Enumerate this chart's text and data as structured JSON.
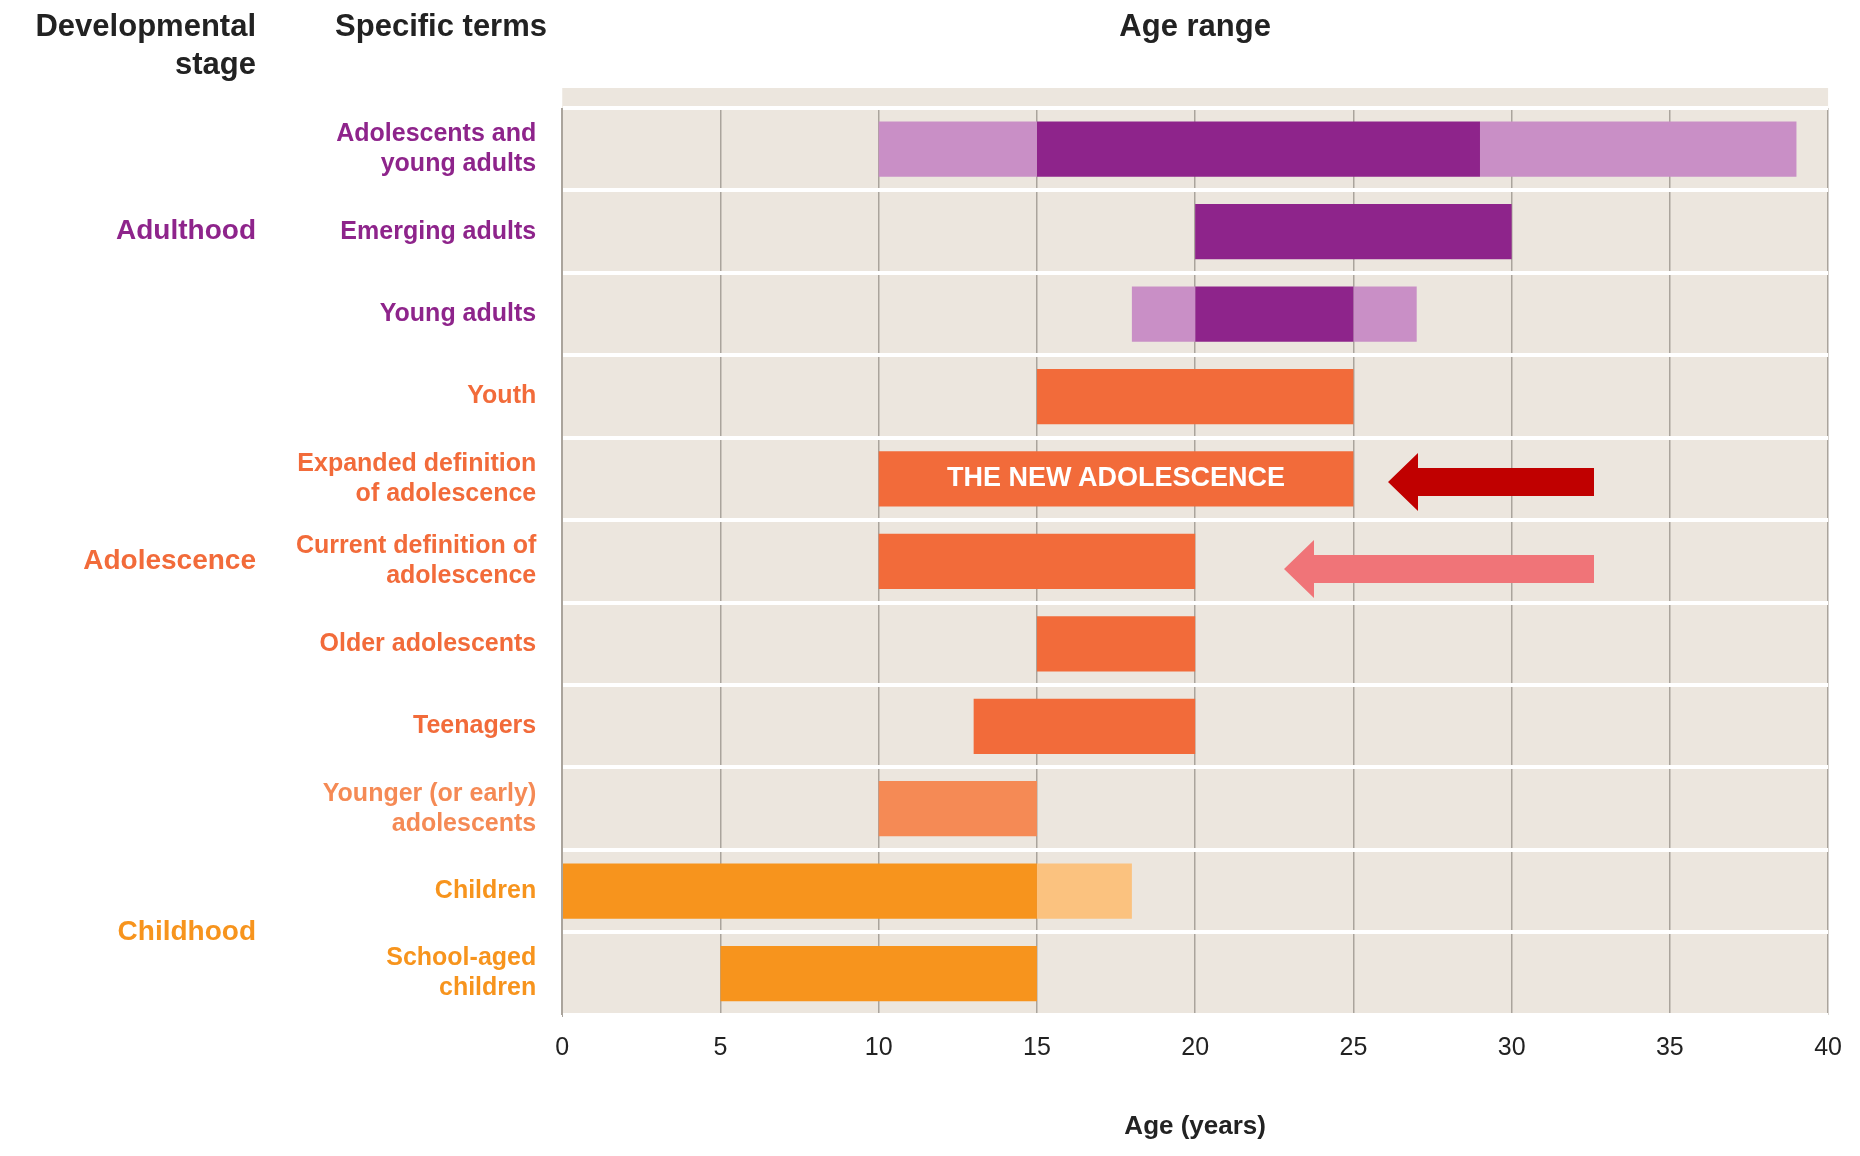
{
  "chart_data": {
    "type": "bar",
    "orientation": "horizontal",
    "title": "Age range",
    "xlabel": "Age (years)",
    "ylabel": "Specific terms",
    "categories": [
      "Adolescents and young adults",
      "Emerging adults",
      "Young adults",
      "Youth",
      "Expanded definition of adolescence",
      "Current definition of adolescence",
      "Older adolescents",
      "Teenagers",
      "Younger (or early) adolescents",
      "Children",
      "School-aged children"
    ],
    "series": [
      {
        "colors": [
          "#c98fc6",
          null,
          "#c98fc6",
          null,
          null,
          null,
          null,
          null,
          "#f58a55",
          null,
          null
        ],
        "base": [
          10,
          null,
          18,
          null,
          null,
          null,
          null,
          null,
          10,
          null,
          null
        ],
        "values": [
          5,
          null,
          2,
          null,
          null,
          null,
          null,
          null,
          5,
          null,
          null
        ]
      },
      {
        "colors": [
          "#8e248b",
          "#8e248b",
          "#8e248b",
          "#f26b3a",
          "#f26b3a",
          "#f26b3a",
          "#f26b3a",
          "#f26b3a",
          null,
          "#f7941d",
          "#f7941d"
        ],
        "base": [
          15,
          20,
          20,
          15,
          10,
          10,
          15,
          13,
          null,
          0,
          5
        ],
        "values": [
          14,
          10,
          5,
          10,
          15,
          10,
          5,
          7,
          null,
          15,
          10
        ]
      },
      {
        "colors": [
          "#c98fc6",
          null,
          "#c98fc6",
          null,
          null,
          null,
          null,
          null,
          null,
          "#fbc27f",
          null
        ],
        "base": [
          29,
          null,
          25,
          null,
          null,
          null,
          null,
          null,
          null,
          15,
          null
        ],
        "values": [
          10,
          null,
          2,
          null,
          null,
          null,
          null,
          null,
          null,
          3,
          null
        ]
      }
    ],
    "xlim": [
      0,
      40
    ],
    "xticks": [
      0,
      5,
      10,
      15,
      20,
      25,
      30,
      35,
      40
    ],
    "grid": true,
    "legend": false,
    "annotations": [
      "Developmental stage",
      "Adulthood",
      "Adolescence",
      "Childhood",
      "THE NEW ADOLESCENCE"
    ]
  }
}
